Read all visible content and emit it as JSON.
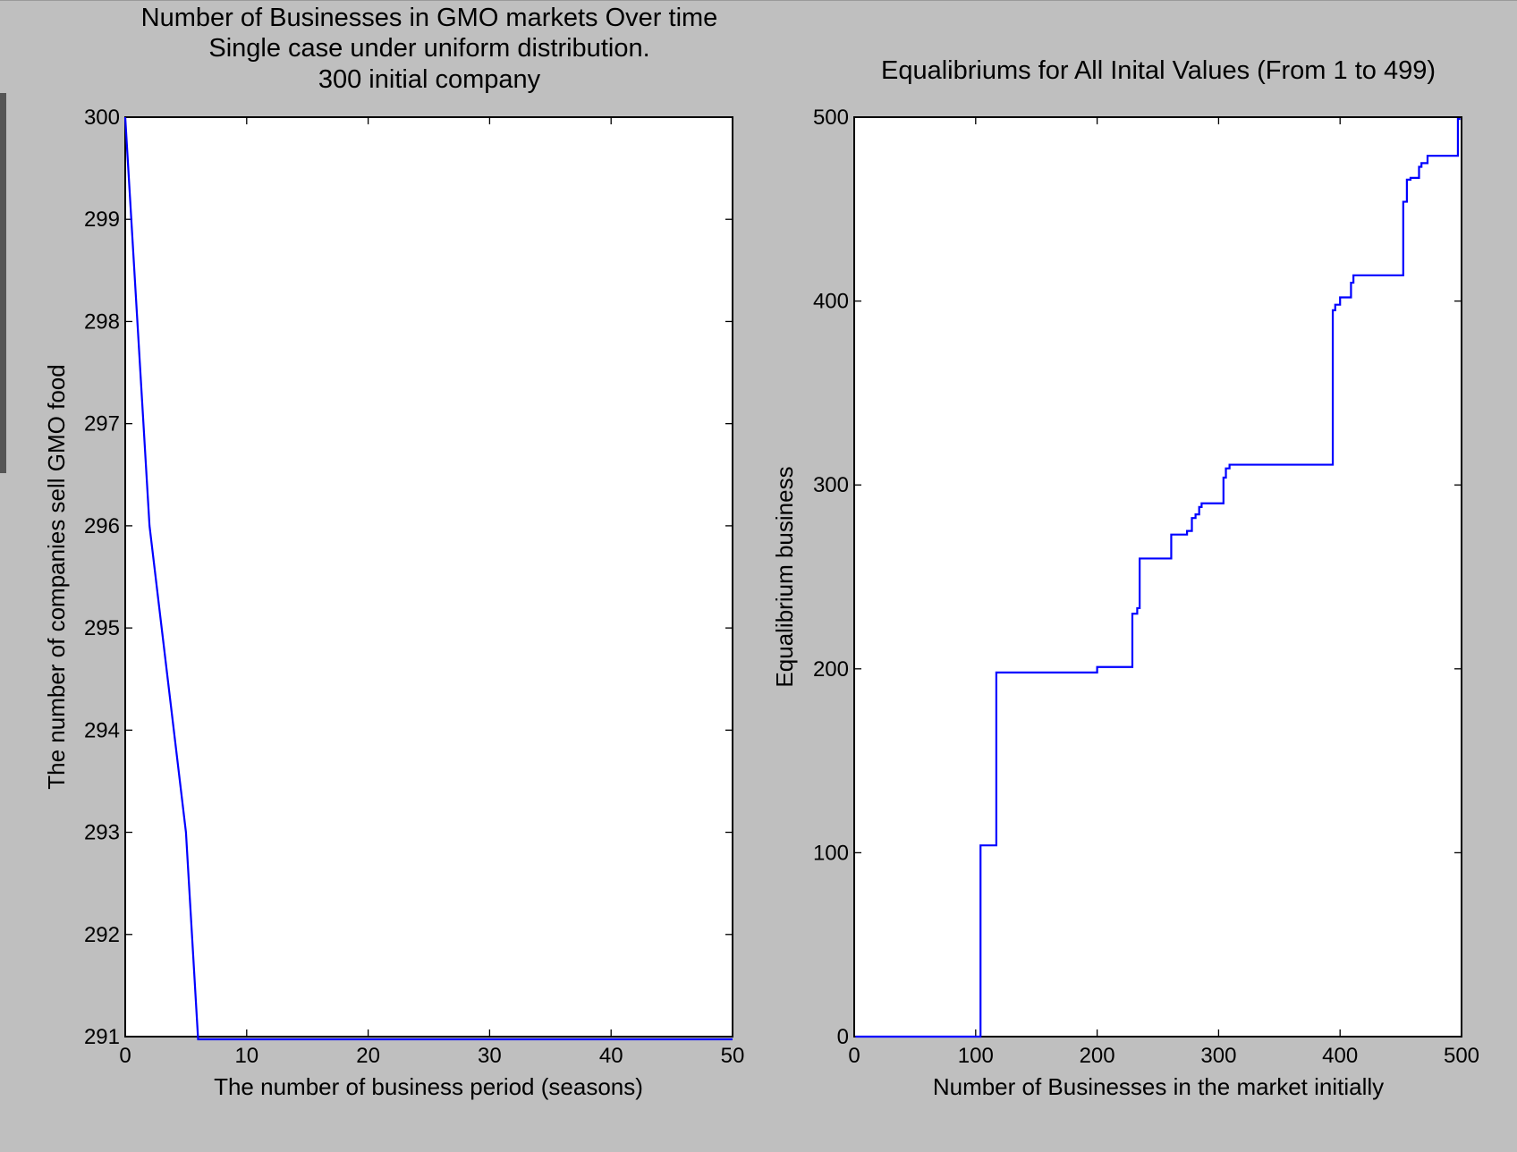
{
  "colors": {
    "background": "#bfbfbf",
    "series": "#0000ff",
    "plot_bg": "#ffffff"
  },
  "chart_data": [
    {
      "type": "line",
      "title": [
        "Number of Businesses in GMO markets Over time",
        "Single case under uniform distribution.",
        "300 initial company"
      ],
      "xlabel": "The number of business period (seasons)",
      "ylabel": "The number of companies sell GMO food",
      "xlim": [
        0,
        50
      ],
      "ylim": [
        291,
        300
      ],
      "xticks": [
        0,
        10,
        20,
        30,
        40,
        50
      ],
      "yticks": [
        291,
        292,
        293,
        294,
        295,
        296,
        297,
        298,
        299,
        300
      ],
      "grid": false,
      "series": [
        {
          "x": [
            0,
            2,
            5,
            6,
            7,
            50
          ],
          "y": [
            300,
            296,
            293,
            290.8,
            290.8,
            290.8
          ]
        }
      ]
    },
    {
      "type": "line",
      "title": [
        "Equalibriums for All Inital Values (From 1 to 499)"
      ],
      "xlabel": "Number of Businesses in the market initially",
      "ylabel": "Equalibrium business",
      "xlim": [
        0,
        500
      ],
      "ylim": [
        0,
        500
      ],
      "xticks": [
        0,
        100,
        200,
        300,
        400,
        500
      ],
      "yticks": [
        0,
        100,
        200,
        300,
        400,
        500
      ],
      "grid": false,
      "series": [
        {
          "x": [
            1,
            104,
            104,
            117,
            117,
            200,
            200,
            229,
            229,
            233,
            233,
            235,
            235,
            261,
            261,
            274,
            274,
            278,
            278,
            281,
            281,
            284,
            284,
            286,
            286,
            304,
            304,
            306,
            306,
            309,
            309,
            394,
            394,
            396,
            396,
            400,
            400,
            409,
            409,
            411,
            411,
            452,
            452,
            455,
            455,
            458,
            458,
            465,
            465,
            467,
            467,
            472,
            472,
            497,
            497,
            499
          ],
          "y": [
            0,
            0,
            104,
            104,
            198,
            198,
            201,
            201,
            230,
            230,
            233,
            233,
            260,
            260,
            273,
            273,
            275,
            275,
            282,
            282,
            284,
            284,
            288,
            288,
            290,
            290,
            304,
            304,
            309,
            309,
            311,
            311,
            395,
            395,
            398,
            398,
            402,
            402,
            410,
            410,
            414,
            414,
            454,
            454,
            466,
            466,
            467,
            467,
            473,
            473,
            475,
            475,
            479,
            479,
            499,
            499
          ]
        }
      ]
    }
  ]
}
